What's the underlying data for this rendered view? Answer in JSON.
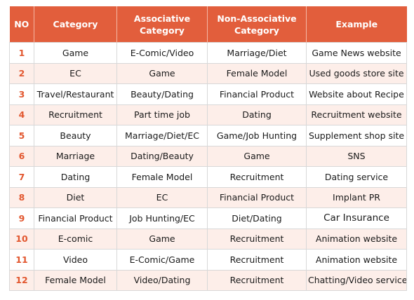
{
  "table": {
    "headers": [
      "NO",
      "Category",
      "Associative\nCategory",
      "Non-Associative\nCategory",
      "Example"
    ],
    "header_lines": [
      [
        "NO"
      ],
      [
        "Category"
      ],
      [
        "Associative",
        "Category"
      ],
      [
        "Non-Associative",
        "Category"
      ],
      [
        "Example"
      ]
    ],
    "rows": [
      {
        "no": "1",
        "category": "Game",
        "associative": "E-Comic/Video",
        "non_associative": "Marriage/Diet",
        "example": "Game News website"
      },
      {
        "no": "2",
        "category": "EC",
        "associative": "Game",
        "non_associative": "Female Model",
        "example": "Used goods store site"
      },
      {
        "no": "3",
        "category": "Travel/Restaurant",
        "associative": "Beauty/Dating",
        "non_associative": "Financial Product",
        "example": "Website about Recipe"
      },
      {
        "no": "4",
        "category": "Recruitment",
        "associative": "Part time job",
        "non_associative": "Dating",
        "example": "Recruitment website"
      },
      {
        "no": "5",
        "category": "Beauty",
        "associative": "Marriage/Diet/EC",
        "non_associative": "Game/Job Hunting",
        "example": "Supplement shop site"
      },
      {
        "no": "6",
        "category": "Marriage",
        "associative": "Dating/Beauty",
        "non_associative": "Game",
        "example": "SNS"
      },
      {
        "no": "7",
        "category": "Dating",
        "associative": "Female Model",
        "non_associative": "Recruitment",
        "example": "Dating service"
      },
      {
        "no": "8",
        "category": "Diet",
        "associative": "EC",
        "non_associative": "Financial Product",
        "example": "Implant PR"
      },
      {
        "no": "9",
        "category": "Financial Product",
        "associative": "Job Hunting/EC",
        "non_associative": "Diet/Dating",
        "example": "Car Insurance"
      },
      {
        "no": "10",
        "category": "E-comic",
        "associative": "Game",
        "non_associative": "Recruitment",
        "example": "Animation website"
      },
      {
        "no": "11",
        "category": "Video",
        "associative": "E-Comic/Game",
        "non_associative": "Recruitment",
        "example": "Animation website"
      },
      {
        "no": "12",
        "category": "Female Model",
        "associative": "Video/Dating",
        "non_associative": "Recruitment",
        "example": "Chatting/Video service"
      }
    ]
  },
  "colors": {
    "header_background": "#e25e3c",
    "header_text": "#ffffff",
    "number_text": "#e2572f",
    "alternate_row_background": "#fdeee9",
    "border": "#d8d8d8"
  }
}
